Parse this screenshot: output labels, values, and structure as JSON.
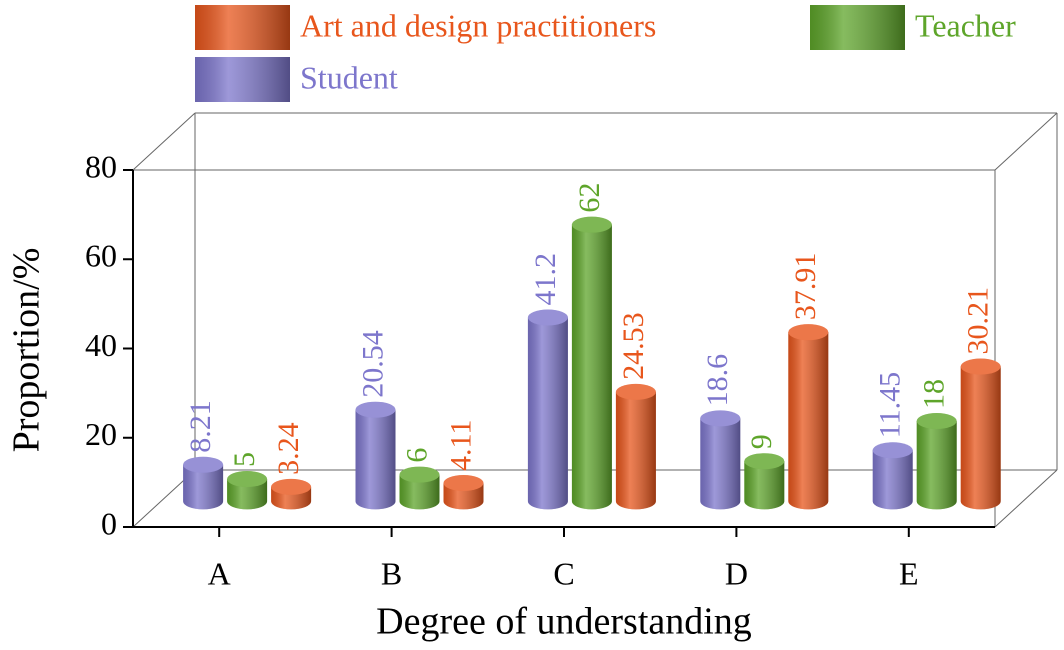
{
  "chart_data": {
    "type": "bar3d",
    "xlabel": "Degree of understanding",
    "ylabel": "Proportion/%",
    "categories": [
      "A",
      "B",
      "C",
      "D",
      "E"
    ],
    "series": [
      {
        "name": "Student",
        "color": "#7d76cc",
        "values": [
          8.21,
          20.54,
          41.2,
          18.6,
          11.45
        ]
      },
      {
        "name": "Teacher",
        "color": "#5ea52a",
        "values": [
          5,
          6,
          62,
          9,
          18
        ]
      },
      {
        "name": "Art and design practitioners",
        "color": "#e8561c",
        "values": [
          3.24,
          4.11,
          24.53,
          37.91,
          30.21
        ]
      }
    ],
    "ylim": [
      0,
      80
    ],
    "yticks": [
      0,
      20,
      40,
      60,
      80
    ]
  }
}
